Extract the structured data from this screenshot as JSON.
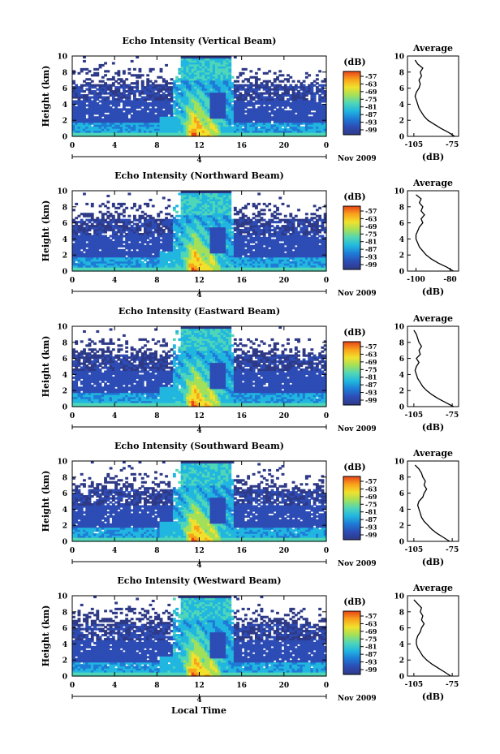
{
  "figure": {
    "xlabel": "Local Time",
    "date_label": "Nov 2009",
    "day_label": "4",
    "colorbar_unit": "(dB)",
    "profile_title": "Average",
    "profile_xlabel": "(dB)",
    "ylabel": "Height (km)"
  },
  "colors": {
    "colormap": [
      "#2e3a87",
      "#2d4cb5",
      "#1e7bd6",
      "#21b6e0",
      "#4fd6b8",
      "#a3e05a",
      "#f1e12c",
      "#f9a21b",
      "#e8431a"
    ],
    "background": "#ffffff",
    "no_echo": "#ffffff"
  },
  "chart_data": [
    {
      "type": "heatmap",
      "title": "Echo Intensity (Vertical Beam)",
      "ylabel": "Height (km)",
      "xlabel": "",
      "x_ticks": [
        "0",
        "4",
        "8",
        "12",
        "16",
        "20",
        "0"
      ],
      "x_range_hours": [
        0,
        24
      ],
      "y_ticks": [
        "0",
        "2",
        "4",
        "6",
        "8",
        "10"
      ],
      "y_range_km": [
        0,
        10
      ],
      "colorbar": {
        "label": "(dB)",
        "ticks": [
          "-57",
          "-63",
          "-69",
          "-75",
          "-81",
          "-87",
          "-93",
          "-99"
        ]
      },
      "profile": {
        "title": "Average",
        "xlabel": "(dB)",
        "x_ticks": [
          "-105",
          "-75"
        ],
        "x_range": [
          -110,
          -70
        ],
        "y_range_km": [
          0,
          10
        ],
        "height_km": [
          0,
          0.5,
          1,
          1.5,
          2,
          2.5,
          3,
          3.5,
          4,
          4.5,
          5,
          5.5,
          6,
          6.5,
          7,
          7.5,
          8,
          8.5,
          9,
          9.5
        ],
        "avg_db": [
          -73,
          -78,
          -84,
          -89,
          -94,
          -97,
          -99,
          -101,
          -102,
          -103,
          -104,
          -103,
          -101,
          -100,
          -101,
          -99,
          -100,
          -98,
          -102,
          -104
        ]
      }
    },
    {
      "type": "heatmap",
      "title": "Echo Intensity (Northward Beam)",
      "ylabel": "Height (km)",
      "xlabel": "",
      "x_ticks": [
        "0",
        "4",
        "8",
        "12",
        "16",
        "20",
        "0"
      ],
      "x_range_hours": [
        0,
        24
      ],
      "y_ticks": [
        "0",
        "2",
        "4",
        "6",
        "8",
        "10"
      ],
      "y_range_km": [
        0,
        10
      ],
      "colorbar": {
        "label": "(dB)",
        "ticks": [
          "-57",
          "-63",
          "-69",
          "-75",
          "-81",
          "-87",
          "-93",
          "-99"
        ]
      },
      "profile": {
        "title": "Average",
        "xlabel": "(dB)",
        "x_ticks": [
          "-100",
          "-80"
        ],
        "x_range": [
          -105,
          -75
        ],
        "y_range_km": [
          0,
          10
        ],
        "height_km": [
          0,
          0.5,
          1,
          1.5,
          2,
          2.5,
          3,
          3.5,
          4,
          4.5,
          5,
          5.5,
          6,
          6.5,
          7,
          7.5,
          8,
          8.5,
          9,
          9.5
        ],
        "avg_db": [
          -78,
          -82,
          -87,
          -91,
          -94,
          -96,
          -98,
          -99,
          -100,
          -100,
          -99,
          -98,
          -96,
          -97,
          -95,
          -97,
          -96,
          -98,
          -97,
          -100
        ]
      }
    },
    {
      "type": "heatmap",
      "title": "Echo Intensity (Eastward Beam)",
      "ylabel": "Height (km)",
      "xlabel": "",
      "x_ticks": [
        "0",
        "4",
        "8",
        "12",
        "16",
        "20",
        "0"
      ],
      "x_range_hours": [
        0,
        24
      ],
      "y_ticks": [
        "0",
        "2",
        "4",
        "6",
        "8",
        "10"
      ],
      "y_range_km": [
        0,
        10
      ],
      "colorbar": {
        "label": "(dB)",
        "ticks": [
          "-57",
          "-63",
          "-69",
          "-75",
          "-81",
          "-87",
          "-93",
          "-99"
        ]
      },
      "profile": {
        "title": "Average",
        "xlabel": "(dB)",
        "x_ticks": [
          "-105",
          "-75"
        ],
        "x_range": [
          -110,
          -70
        ],
        "y_range_km": [
          0,
          10
        ],
        "height_km": [
          0,
          0.5,
          1,
          1.5,
          2,
          2.5,
          3,
          3.5,
          4,
          4.5,
          5,
          5.5,
          6,
          6.5,
          7,
          7.5,
          8,
          8.5,
          9,
          9.5
        ],
        "avg_db": [
          -74,
          -80,
          -86,
          -91,
          -95,
          -98,
          -100,
          -102,
          -103,
          -104,
          -103,
          -101,
          -103,
          -100,
          -101,
          -99,
          -101,
          -102,
          -103,
          -105
        ]
      }
    },
    {
      "type": "heatmap",
      "title": "Echo Intensity (Southward Beam)",
      "ylabel": "Height (km)",
      "xlabel": "",
      "x_ticks": [
        "0",
        "4",
        "8",
        "12",
        "16",
        "20",
        "0"
      ],
      "x_range_hours": [
        0,
        24
      ],
      "y_ticks": [
        "0",
        "2",
        "4",
        "6",
        "8",
        "10"
      ],
      "y_range_km": [
        0,
        10
      ],
      "colorbar": {
        "label": "(dB)",
        "ticks": [
          "-57",
          "-63",
          "-69",
          "-75",
          "-81",
          "-87",
          "-93",
          "-99"
        ]
      },
      "profile": {
        "title": "Average",
        "xlabel": "(dB)",
        "x_ticks": [
          "-105",
          "-75"
        ],
        "x_range": [
          -110,
          -70
        ],
        "y_range_km": [
          0,
          10
        ],
        "height_km": [
          0,
          0.5,
          1,
          1.5,
          2,
          2.5,
          3,
          3.5,
          4,
          4.5,
          5,
          5.5,
          6,
          6.5,
          7,
          7.5,
          8,
          8.5,
          9,
          9.5
        ],
        "avg_db": [
          -77,
          -82,
          -87,
          -91,
          -94,
          -97,
          -99,
          -100,
          -101,
          -102,
          -101,
          -98,
          -97,
          -95,
          -97,
          -96,
          -98,
          -99,
          -101,
          -104
        ]
      }
    },
    {
      "type": "heatmap",
      "title": "Echo Intensity (Westward Beam)",
      "ylabel": "Height (km)",
      "xlabel": "Local Time",
      "x_ticks": [
        "0",
        "4",
        "8",
        "12",
        "16",
        "20",
        "0"
      ],
      "x_range_hours": [
        0,
        24
      ],
      "y_ticks": [
        "0",
        "2",
        "4",
        "6",
        "8",
        "10"
      ],
      "y_range_km": [
        0,
        10
      ],
      "colorbar": {
        "label": "(dB)",
        "ticks": [
          "-57",
          "-63",
          "-69",
          "-75",
          "-81",
          "-87",
          "-93",
          "-99"
        ]
      },
      "profile": {
        "title": "Average",
        "xlabel": "(dB)",
        "x_ticks": [
          "-105",
          "-75"
        ],
        "x_range": [
          -110,
          -70
        ],
        "y_range_km": [
          0,
          10
        ],
        "height_km": [
          0,
          0.5,
          1,
          1.5,
          2,
          2.5,
          3,
          3.5,
          4,
          4.5,
          5,
          5.5,
          6,
          6.5,
          7,
          7.5,
          8,
          8.5,
          9,
          9.5
        ],
        "avg_db": [
          -76,
          -81,
          -86,
          -91,
          -95,
          -98,
          -100,
          -102,
          -103,
          -103,
          -102,
          -100,
          -99,
          -97,
          -99,
          -98,
          -100,
          -99,
          -102,
          -105
        ]
      }
    }
  ]
}
